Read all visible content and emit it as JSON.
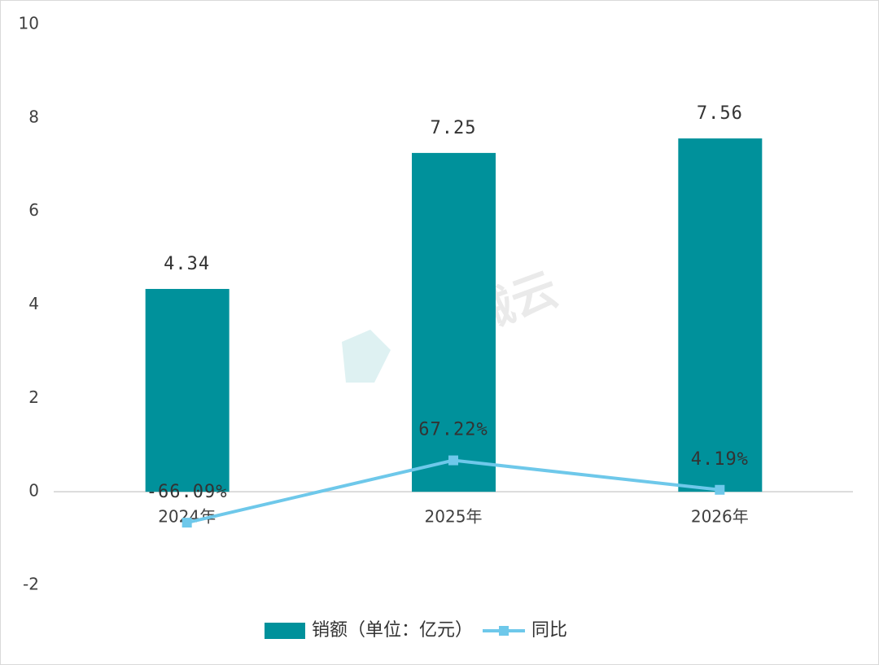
{
  "chart_data": {
    "type": "bar_line",
    "watermark": "智械云",
    "categories": [
      "2024年",
      "2025年",
      "2026年"
    ],
    "series": [
      {
        "name": "销额（单位：亿元）",
        "type": "bar",
        "color": "#00919b",
        "values": [
          4.34,
          7.25,
          7.56
        ]
      },
      {
        "name": "同比",
        "type": "line",
        "color": "#6ec8ea",
        "values": [
          -0.6609,
          0.6722,
          0.0419
        ],
        "value_labels": [
          "-66.09%",
          "67.22%",
          "4.19%"
        ]
      }
    ],
    "ylim": [
      -2,
      10
    ],
    "yticks": [
      -2,
      0,
      2,
      4,
      6,
      8,
      10
    ],
    "grid": false,
    "legend": "bottom"
  }
}
